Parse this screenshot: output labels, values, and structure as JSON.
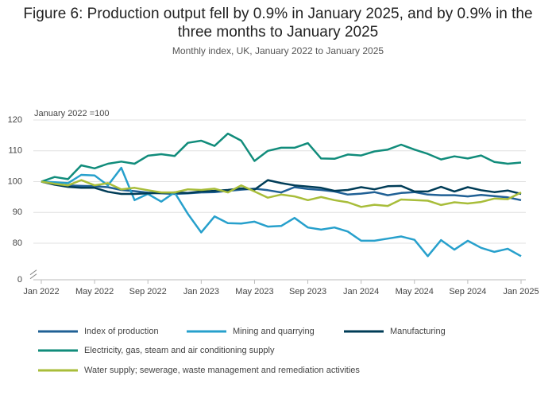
{
  "chart_data": {
    "type": "line",
    "title": "Figure 6: Production output fell by 0.9% in January 2025, and by 0.9% in the three months to January 2025",
    "subtitle": "Monthly index, UK, January 2022 to January 2025",
    "y_axis_label": "January 2022 =100",
    "categories": [
      "Jan 2022",
      null,
      null,
      null,
      "May 2022",
      null,
      null,
      null,
      "Sep 2022",
      null,
      null,
      null,
      "Jan 2023",
      null,
      null,
      null,
      "May 2023",
      null,
      null,
      null,
      "Sep 2023",
      null,
      null,
      null,
      "Jan 2024",
      null,
      null,
      null,
      "May 2024",
      null,
      null,
      null,
      "Sep 2024",
      null,
      null,
      null,
      "Jan 2025"
    ],
    "series": [
      {
        "name": "Index of production",
        "color": "#206095",
        "values": [
          100,
          99.3,
          98.8,
          98.6,
          98.5,
          98.2,
          97.3,
          96.9,
          96.4,
          96.2,
          96.0,
          96.2,
          96.5,
          96.6,
          97.0,
          97.4,
          97.7,
          97.2,
          96.5,
          98.2,
          97.6,
          97.3,
          96.8,
          95.8,
          96.1,
          96.6,
          95.6,
          96.3,
          96.6,
          95.8,
          95.6,
          95.6,
          95.2,
          95.7,
          95.3,
          94.9,
          94.0
        ]
      },
      {
        "name": "Mining and quarrying",
        "color": "#27a0cc",
        "values": [
          100,
          99.8,
          99.5,
          102.2,
          102,
          98.8,
          104.5,
          94,
          96,
          93.5,
          96.5,
          89.5,
          83.5,
          88.7,
          86.5,
          86.4,
          87,
          85.4,
          85.6,
          88.2,
          85.1,
          84.4,
          85.1,
          83.8,
          80.8,
          80.8,
          81.5,
          82.2,
          81.1,
          75.8,
          81,
          77.9,
          80.8,
          78.5,
          77.2,
          78.2,
          75.8
        ]
      },
      {
        "name": "Manufacturing",
        "color": "#003c57",
        "values": [
          100,
          99,
          98.3,
          98,
          98,
          96.7,
          96,
          96,
          96.2,
          96.3,
          96.5,
          96.3,
          96.8,
          97,
          97.3,
          97.8,
          97.4,
          100.5,
          99.5,
          98.8,
          98.4,
          98,
          97,
          97.3,
          98.2,
          97.5,
          98.5,
          98.6,
          96.8,
          96.8,
          98.3,
          96.8,
          98.2,
          97.2,
          96.6,
          97.1,
          96.0
        ]
      },
      {
        "name": "Electricity, gas, steam and air conditioning supply",
        "color": "#118c7b",
        "values": [
          100,
          101.5,
          100.8,
          105.3,
          104.3,
          105.8,
          106.5,
          105.8,
          108.4,
          108.9,
          108.3,
          112.6,
          113.3,
          111.6,
          115.6,
          113.3,
          106.7,
          110,
          111,
          111,
          112.5,
          107.5,
          107.4,
          108.8,
          108.5,
          109.8,
          110.4,
          112,
          110.4,
          109,
          107.2,
          108.2,
          107.5,
          108.5,
          106.4,
          105.8,
          106.2
        ]
      },
      {
        "name": "Water supply; sewerage, waste management and remediation activities",
        "color": "#a8bd3a",
        "values": [
          100,
          99.3,
          98.8,
          100.5,
          98.8,
          99.5,
          97.5,
          98,
          97.2,
          96.5,
          96.5,
          97.5,
          97.3,
          97.7,
          96.5,
          98.8,
          96.8,
          94.8,
          95.8,
          95.2,
          94.0,
          95.0,
          94.0,
          93.3,
          91.8,
          92.5,
          92.1,
          94.2,
          94,
          93.8,
          92.4,
          93.3,
          92.9,
          93.4,
          94.5,
          94.3,
          96.5
        ]
      }
    ],
    "ylim": [
      0,
      120
    ],
    "yticks": [
      0,
      80,
      90,
      100,
      110,
      120
    ],
    "y_axis_break": true,
    "grid": true
  }
}
